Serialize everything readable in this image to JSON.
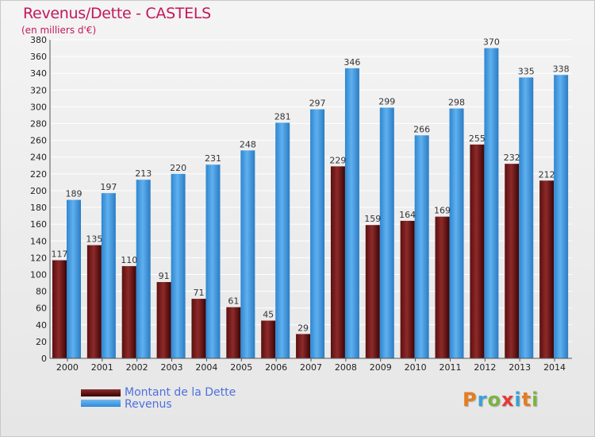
{
  "title": "Revenus/Dette - CASTELS",
  "subtitle": "(en milliers d'€)",
  "legend": {
    "debt_label": "Montant de la Dette",
    "revenue_label": "Revenus"
  },
  "logo": {
    "letters": [
      "P",
      "r",
      "o",
      "x",
      "i",
      "t",
      "i"
    ],
    "colors": [
      "#e57c1f",
      "#3aa0d8",
      "#7cb342",
      "#e53935",
      "#3aa0d8",
      "#e57c1f",
      "#7cb342"
    ]
  },
  "colors": {
    "debt": "#7a1e1e",
    "revenue": "#3d97e0",
    "title": "#c2185b",
    "legend_text": "#4e6ee0"
  },
  "chart_data": {
    "type": "bar",
    "title": "Revenus/Dette - CASTELS",
    "subtitle": "(en milliers d'€)",
    "categories": [
      "2000",
      "2001",
      "2002",
      "2003",
      "2004",
      "2005",
      "2006",
      "2007",
      "2008",
      "2009",
      "2010",
      "2011",
      "2012",
      "2013",
      "2014"
    ],
    "series": [
      {
        "name": "Montant de la Dette",
        "values": [
          117,
          135,
          110,
          91,
          71,
          61,
          45,
          29,
          229,
          159,
          164,
          169,
          255,
          232,
          212
        ]
      },
      {
        "name": "Revenus",
        "values": [
          189,
          197,
          213,
          220,
          231,
          248,
          281,
          297,
          346,
          299,
          266,
          298,
          370,
          335,
          338
        ]
      }
    ],
    "ylim": [
      0,
      380
    ],
    "ytick_step": 20,
    "grid": true,
    "legend_position": "bottom-left"
  }
}
